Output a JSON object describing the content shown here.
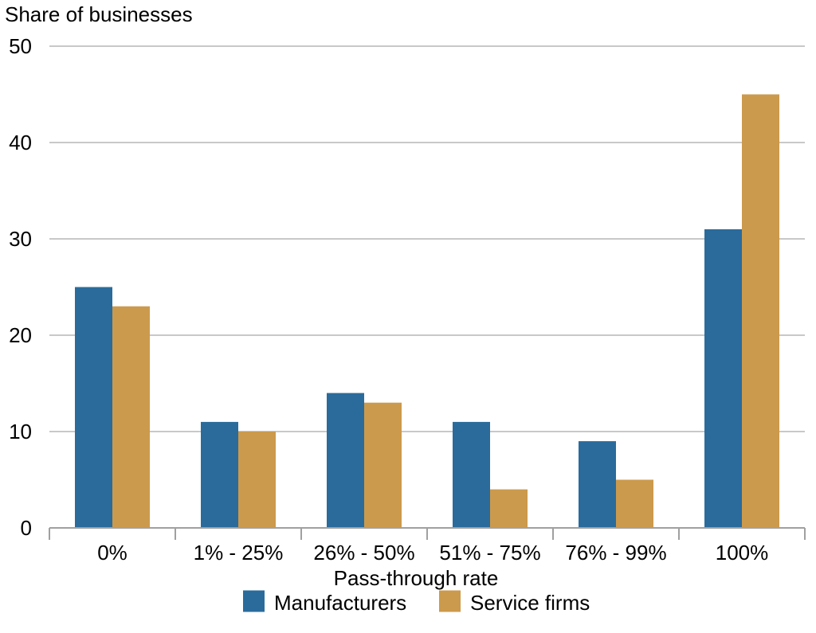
{
  "chart_data": {
    "type": "bar",
    "title": "",
    "ylabel": "Share of businesses",
    "xlabel": "Pass-through rate",
    "categories": [
      "0%",
      "1% - 25%",
      "26% - 50%",
      "51% - 75%",
      "76% - 99%",
      "100%"
    ],
    "series": [
      {
        "name": "Manufacturers",
        "values": [
          25,
          11,
          14,
          11,
          9,
          31
        ],
        "color": "#2A6B9C"
      },
      {
        "name": "Service firms",
        "values": [
          23,
          10,
          13,
          4,
          5,
          45
        ],
        "color": "#CC9A4C"
      }
    ],
    "ylim": [
      0,
      50
    ],
    "yticks": [
      0,
      10,
      20,
      30,
      40,
      50
    ],
    "grid": true,
    "legend_position": "bottom"
  },
  "colors": {
    "grid": "#C8C8C8",
    "axis": "#A0A0A0"
  }
}
